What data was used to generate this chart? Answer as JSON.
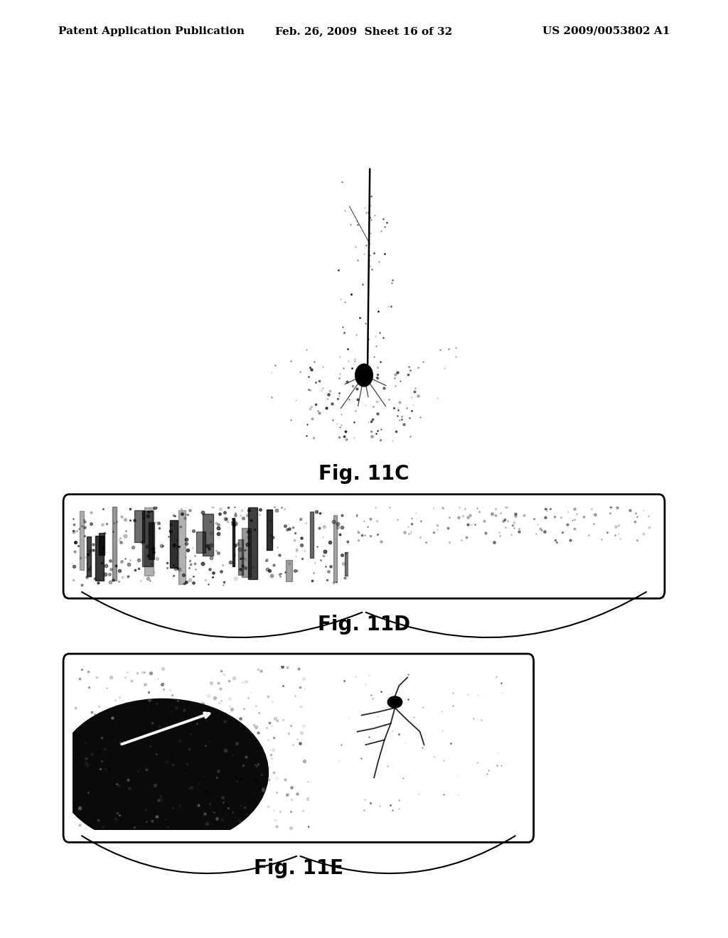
{
  "background_color": "#ffffff",
  "header_left": "Patent Application Publication",
  "header_center": "Feb. 26, 2009  Sheet 16 of 32",
  "header_right": "US 2009/0053802 A1",
  "header_fontsize": 11,
  "fig11c_label": "Fig. 11C",
  "fig11d_label": "Fig. 11D",
  "fig11e_label": "Fig. 11E",
  "label_fontsize": 20
}
